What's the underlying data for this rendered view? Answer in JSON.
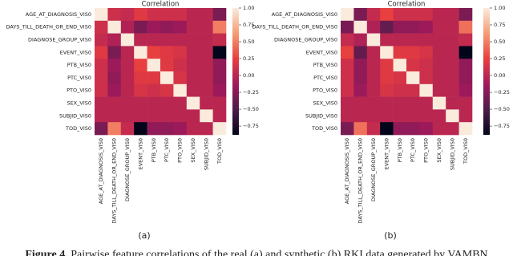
{
  "chart_data": [
    {
      "type": "heatmap",
      "title": "Correlation",
      "panel_label": "(a)",
      "x": [
        "AGE_AT_DIAGNOSIS_VIS0",
        "DAYS_TILL_DEATH_OR_END_VIS0",
        "DIAGNOSE_GROUP_VIS0",
        "EVENT_VIS0",
        "PTB_VIS0",
        "PTC_VIS0",
        "PTO_VIS0",
        "SEX_VIS0",
        "SUBJID_VIS0",
        "TOD_VIS0"
      ],
      "y": [
        "AGE_AT_DIAGNOSIS_VIS0",
        "DAYS_TILL_DEATH_OR_END_VIS0",
        "DIAGNOSE_GROUP_VIS0",
        "EVENT_VIS0",
        "PTB_VIS0",
        "PTC_VIS0",
        "PTO_VIS0",
        "SEX_VIS0",
        "SUBJID_VIS0",
        "TOD_VIS0"
      ],
      "values": [
        [
          1,
          0.1,
          0.05,
          0.2,
          0.1,
          0.1,
          0.1,
          0,
          0,
          -0.3
        ],
        [
          0.1,
          1,
          -0.05,
          -0.3,
          -0.15,
          -0.2,
          -0.15,
          0,
          0,
          0.5
        ],
        [
          0.05,
          -0.05,
          1,
          0,
          0,
          0,
          0,
          0,
          0,
          0.05
        ],
        [
          0.2,
          -0.3,
          0,
          1,
          0.25,
          0.2,
          0.15,
          0,
          0,
          -0.88
        ],
        [
          0.1,
          -0.15,
          0,
          0.25,
          1,
          0.2,
          0.1,
          0,
          0,
          -0.2
        ],
        [
          0.1,
          -0.2,
          0,
          0.2,
          0.2,
          1,
          0.15,
          0,
          0,
          -0.2
        ],
        [
          0.1,
          -0.15,
          0,
          0.15,
          0.1,
          0.15,
          1,
          0,
          0,
          -0.15
        ],
        [
          0,
          0,
          0,
          0,
          0,
          0,
          0,
          1,
          0,
          0
        ],
        [
          0,
          0,
          0,
          0,
          0,
          0,
          0,
          0,
          1,
          0
        ],
        [
          -0.3,
          0.5,
          0.05,
          -0.88,
          -0.2,
          -0.2,
          -0.15,
          0,
          0,
          1
        ]
      ],
      "zlim": [
        -0.88,
        1
      ],
      "zticks": [
        {
          "value": 1,
          "label": "1.00"
        },
        {
          "value": 0.75,
          "label": "0.75"
        },
        {
          "value": 0.5,
          "label": "0.50"
        },
        {
          "value": 0.25,
          "label": "0.25"
        },
        {
          "value": 0,
          "label": "0.00"
        },
        {
          "value": -0.25,
          "label": "−0.25"
        },
        {
          "value": -0.5,
          "label": "−0.50"
        },
        {
          "value": -0.75,
          "label": "−0.75"
        }
      ],
      "colorscale": [
        "#03051a",
        "#4c1d4b",
        "#a11a5b",
        "#e83f3f",
        "#f69c73",
        "#faebdd"
      ]
    },
    {
      "type": "heatmap",
      "title": "Correlation",
      "panel_label": "(b)",
      "x": [
        "AGE_AT_DIAGNOSIS_VIS0",
        "DAYS_TILL_DEATH_OR_END_VIS0",
        "DIAGNOSE_GROUP_VIS0",
        "EVENT_VIS0",
        "PTB_VIS0",
        "PTC_VIS0",
        "PTO_VIS0",
        "SEX_VIS0",
        "SUBJID_VIS0",
        "TOD_VIS0"
      ],
      "y": [
        "AGE_AT_DIAGNOSIS_VIS0",
        "DAYS_TILL_DEATH_OR_END_VIS0",
        "DIAGNOSE_GROUP_VIS0",
        "EVENT_VIS0",
        "PTB_VIS0",
        "PTC_VIS0",
        "PTO_VIS0",
        "SEX_VIS0",
        "SUBJID_VIS0",
        "TOD_VIS0"
      ],
      "values": [
        [
          1,
          -0.3,
          0.05,
          0.25,
          0.1,
          0.1,
          0.1,
          0,
          0,
          -0.3
        ],
        [
          -0.3,
          1,
          -0.05,
          -0.4,
          -0.2,
          -0.2,
          -0.15,
          0,
          0,
          0.45
        ],
        [
          0.05,
          -0.05,
          1,
          0,
          0,
          0,
          0,
          0,
          0,
          0.05
        ],
        [
          0.25,
          -0.4,
          0,
          1,
          0.2,
          0.2,
          0.15,
          0,
          0,
          -0.88
        ],
        [
          0.1,
          -0.2,
          0,
          0.2,
          1,
          0.15,
          0.1,
          0,
          0,
          -0.2
        ],
        [
          0.1,
          -0.2,
          0,
          0.2,
          0.15,
          1,
          0.1,
          0,
          0,
          -0.2
        ],
        [
          0.1,
          -0.15,
          0,
          0.15,
          0.1,
          0.1,
          1,
          0,
          0,
          -0.15
        ],
        [
          0,
          0,
          0,
          0,
          0,
          0,
          0,
          1,
          0,
          0
        ],
        [
          0,
          0,
          0,
          0,
          0,
          0,
          0,
          0,
          1,
          0
        ],
        [
          -0.3,
          0.45,
          0.05,
          -0.88,
          -0.2,
          -0.2,
          -0.15,
          0,
          0,
          1
        ]
      ],
      "zlim": [
        -0.88,
        1
      ],
      "zticks": [
        {
          "value": 1,
          "label": "1.00"
        },
        {
          "value": 0.75,
          "label": "0.75"
        },
        {
          "value": 0.5,
          "label": "0.50"
        },
        {
          "value": 0.25,
          "label": "0.25"
        },
        {
          "value": 0,
          "label": "0.00"
        },
        {
          "value": -0.25,
          "label": "−0.25"
        },
        {
          "value": -0.5,
          "label": "−0.50"
        },
        {
          "value": -0.75,
          "label": "−0.75"
        }
      ],
      "colorscale": [
        "#03051a",
        "#4c1d4b",
        "#a11a5b",
        "#e83f3f",
        "#f69c73",
        "#faebdd"
      ]
    }
  ],
  "caption": {
    "label": "Figure 4.",
    "text": "Pairwise feature correlations of the real (a) and synthetic (b) RKI data generated by VAMBN"
  }
}
